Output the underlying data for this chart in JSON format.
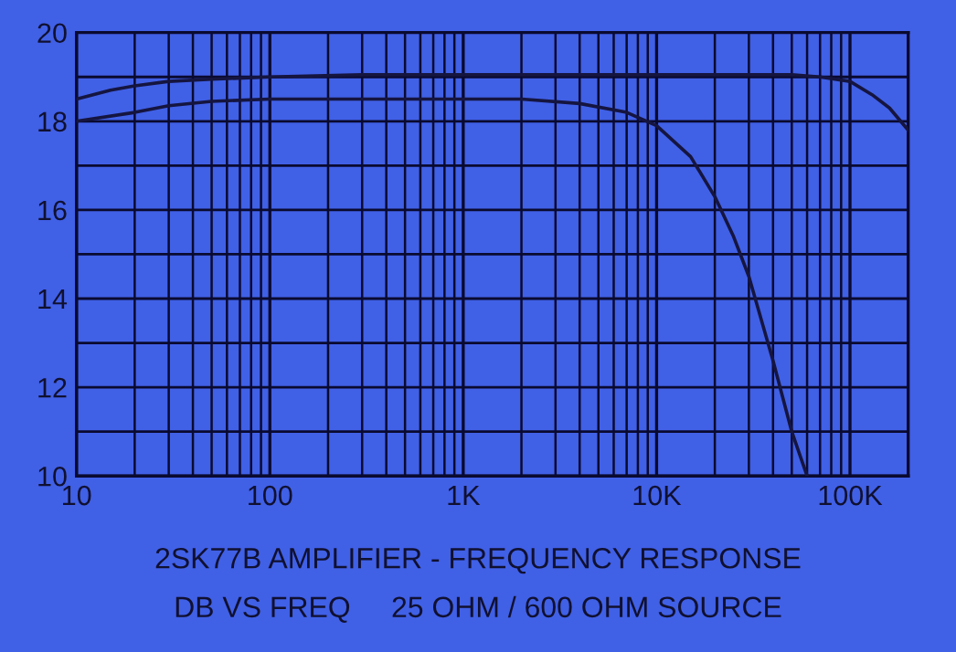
{
  "chart_data": {
    "type": "line",
    "log": "x",
    "grid": true,
    "marker": "none",
    "line_style": "solid",
    "xlim": [
      10,
      200000
    ],
    "xticks": [
      10,
      100,
      {
        "value": 1000,
        "label": "1K"
      },
      {
        "value": 10000,
        "label": "10K"
      },
      {
        "value": 100000,
        "label": "100K"
      }
    ],
    "ylim": [
      10,
      20
    ],
    "yticks": [
      10,
      {
        "value": 11,
        "label": null
      },
      12,
      {
        "value": 13,
        "label": null
      },
      14,
      {
        "value": 15,
        "label": null
      },
      16,
      {
        "value": 17,
        "label": null
      },
      18,
      {
        "value": 19,
        "label": null
      },
      20
    ],
    "series": [
      {
        "color": "#151540",
        "x": [
          10,
          15,
          20,
          30,
          50,
          100,
          300,
          1000,
          10000,
          50000,
          70000,
          100000,
          130000,
          160000,
          200000
        ],
        "values": [
          18.5,
          18.7,
          18.8,
          18.9,
          18.95,
          19.0,
          19.05,
          19.05,
          19.05,
          19.05,
          19.0,
          18.9,
          18.6,
          18.3,
          17.8
        ]
      },
      {
        "color": "#151540",
        "x": [
          10,
          20,
          30,
          50,
          100,
          300,
          1000,
          2000,
          4000,
          7000,
          10000,
          15000,
          20000,
          25000,
          30000,
          40000,
          50000,
          60000
        ],
        "values": [
          18.0,
          18.2,
          18.35,
          18.45,
          18.5,
          18.5,
          18.5,
          18.5,
          18.4,
          18.2,
          17.9,
          17.2,
          16.3,
          15.4,
          14.5,
          12.6,
          11.0,
          10.0
        ]
      }
    ],
    "annotations": [
      "2SK77B AMPLIFIER - FREQUENCY RESPONSE",
      "DB VS FREQ     25 OHM / 600 OHM SOURCE"
    ]
  }
}
